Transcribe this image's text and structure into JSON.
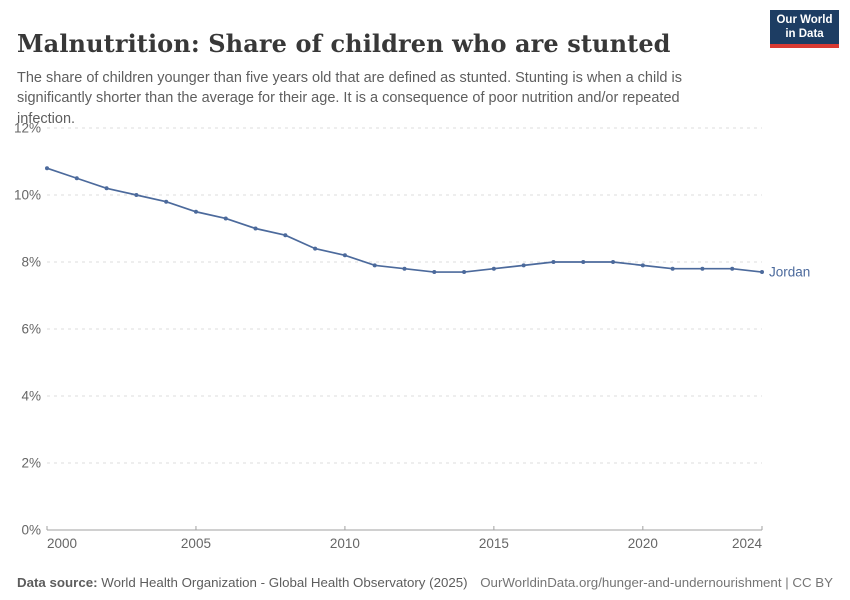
{
  "header": {
    "title": "Malnutrition: Share of children who are stunted",
    "subtitle": "The share of children younger than five years old that are defined as stunted. Stunting is when a child is significantly shorter than the average for their age. It is a consequence of poor nutrition and/or repeated infection.",
    "logo": {
      "line1": "Our World",
      "line2": "in Data",
      "bg_color": "#1d3d63",
      "accent_color": "#d93a32"
    }
  },
  "chart_data": {
    "type": "line",
    "title": "Malnutrition: Share of children who are stunted",
    "xlabel": "",
    "ylabel": "",
    "xlim": [
      2000,
      2024
    ],
    "ylim": [
      0,
      12
    ],
    "ytick_step": 2,
    "ytick_suffix": "%",
    "xticks": [
      2000,
      2005,
      2010,
      2015,
      2020,
      2024
    ],
    "grid": "horizontal-dashed",
    "legend_position": "end-of-line-label",
    "series": [
      {
        "name": "Jordan",
        "color": "#4C6A9C",
        "x": [
          2000,
          2001,
          2002,
          2003,
          2004,
          2005,
          2006,
          2007,
          2008,
          2009,
          2010,
          2011,
          2012,
          2013,
          2014,
          2015,
          2016,
          2017,
          2018,
          2019,
          2020,
          2021,
          2022,
          2023,
          2024
        ],
        "values": [
          10.8,
          10.5,
          10.2,
          10.0,
          9.8,
          9.5,
          9.3,
          9.0,
          8.8,
          8.4,
          8.2,
          7.9,
          7.8,
          7.7,
          7.7,
          7.8,
          7.9,
          8.0,
          8.0,
          8.0,
          7.9,
          7.8,
          7.8,
          7.8,
          7.7
        ]
      }
    ]
  },
  "axis_colors": {
    "grid": "#dedede",
    "axis_line": "#a1a1a1",
    "tick_label": "#666666"
  },
  "footer": {
    "datasource_label": "Data source:",
    "datasource_text": " World Health Organization - Global Health Observatory (2025)",
    "rights_text": "OurWorldinData.org/hunger-and-undernourishment | CC BY"
  }
}
